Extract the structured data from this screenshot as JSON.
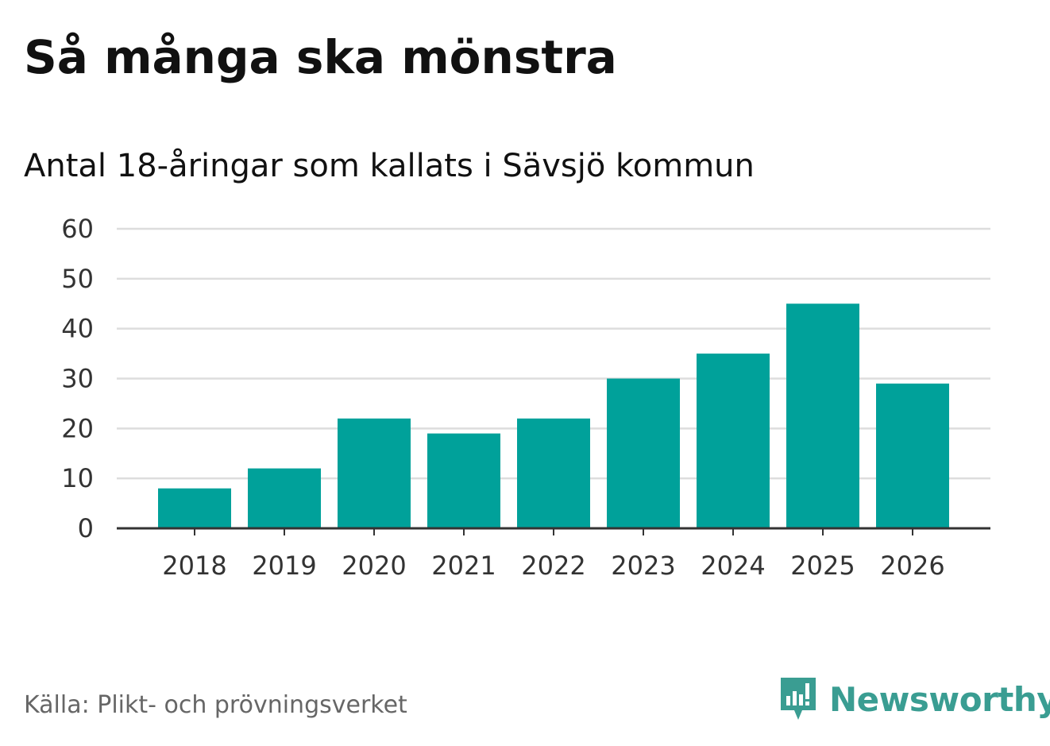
{
  "title": "Så många ska mönstra",
  "subtitle": "Antal 18-åringar som kallats i Sävsjö kommun",
  "source": "Källa: Plikt- och prövningsverket",
  "brand": {
    "name": "Newsworthy",
    "icon": "newsworthy-logo-icon",
    "color": "#3a9d92"
  },
  "colors": {
    "bar": "#00a19a",
    "grid": "#dddddd",
    "axis": "#333333",
    "text": "#333333"
  },
  "chart_data": {
    "type": "bar",
    "title": "Så många ska mönstra",
    "subtitle": "Antal 18-åringar som kallats i Sävsjö kommun",
    "categories": [
      "2018",
      "2019",
      "2020",
      "2021",
      "2022",
      "2023",
      "2024",
      "2025",
      "2026"
    ],
    "values": [
      8,
      12,
      22,
      19,
      22,
      30,
      35,
      45,
      29
    ],
    "yticks": [
      "0",
      "10",
      "20",
      "30",
      "40",
      "50",
      "60"
    ],
    "ylim": [
      0,
      60
    ],
    "xlabel": "",
    "ylabel": "",
    "grid": true,
    "legend": "none"
  }
}
